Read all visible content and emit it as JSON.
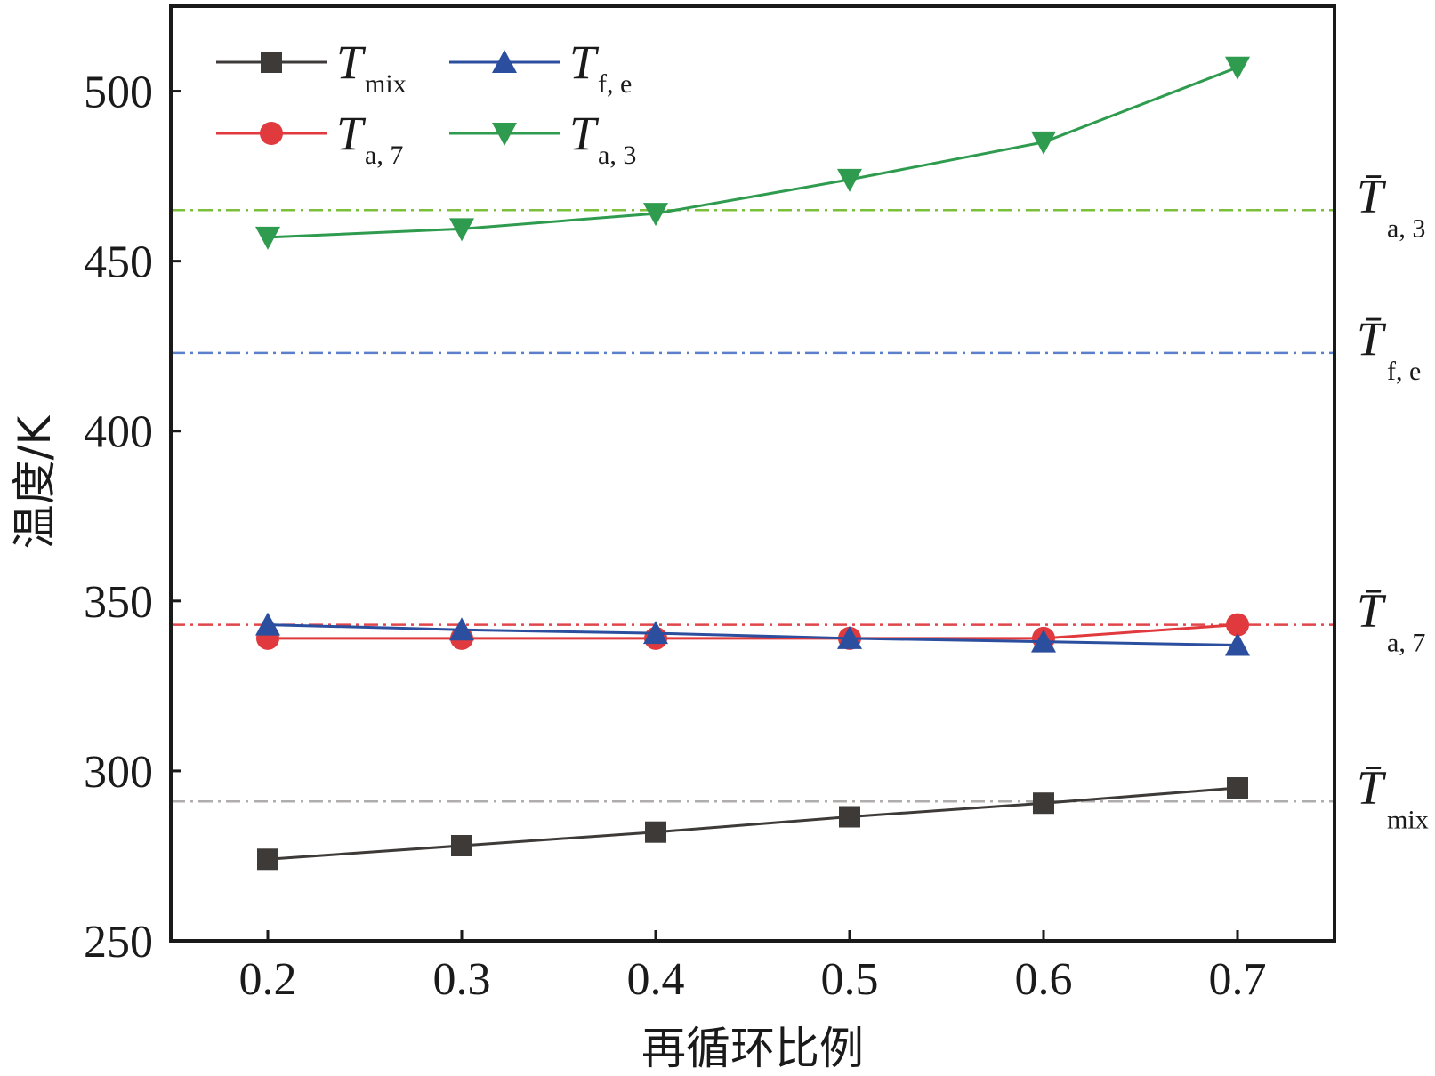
{
  "chart_data": {
    "type": "line",
    "xlabel": "再循环比例",
    "ylabel": "温度/K",
    "xlim": [
      0.15,
      0.75
    ],
    "ylim": [
      250,
      525
    ],
    "x_ticks": [
      "0.2",
      "0.3",
      "0.4",
      "0.5",
      "0.6",
      "0.7"
    ],
    "y_ticks": [
      "250",
      "300",
      "350",
      "400",
      "450",
      "500"
    ],
    "x": [
      0.2,
      0.3,
      0.4,
      0.5,
      0.6,
      0.7
    ],
    "grid": false,
    "legend_position": "top-left",
    "series": [
      {
        "key": "mix",
        "symbol": "T",
        "subscript": "mix",
        "marker": "square",
        "color": "#3d3a38",
        "values": [
          274,
          278,
          282,
          286.5,
          290.5,
          295
        ]
      },
      {
        "key": "fe",
        "symbol": "T",
        "subscript": "f, e",
        "marker": "triangle-up",
        "color": "#2b4f9e",
        "values": [
          343,
          341.5,
          340.5,
          339,
          338,
          337
        ]
      },
      {
        "key": "a7",
        "symbol": "T",
        "subscript": "a, 7",
        "marker": "circle",
        "color": "#e03a3e",
        "values": [
          339,
          339,
          339,
          339,
          339,
          343
        ]
      },
      {
        "key": "a3",
        "symbol": "T",
        "subscript": "a, 3",
        "marker": "triangle-down",
        "color": "#2e9b4e",
        "values": [
          457,
          459.5,
          464,
          474,
          485,
          507
        ]
      }
    ],
    "reference_lines": [
      {
        "key": "a3_mean",
        "symbol": "T̄",
        "subscript": "a, 3",
        "value": 465,
        "color": "#7bbf3a"
      },
      {
        "key": "fe_mean",
        "symbol": "T̄",
        "subscript": "f, e",
        "value": 423,
        "color": "#5b7fcc"
      },
      {
        "key": "a7_mean",
        "symbol": "T̄",
        "subscript": "a, 7",
        "value": 343,
        "color": "#e0464a"
      },
      {
        "key": "mix_mean",
        "symbol": "T̄",
        "subscript": "mix",
        "value": 291,
        "color": "#b0aeac"
      }
    ]
  }
}
